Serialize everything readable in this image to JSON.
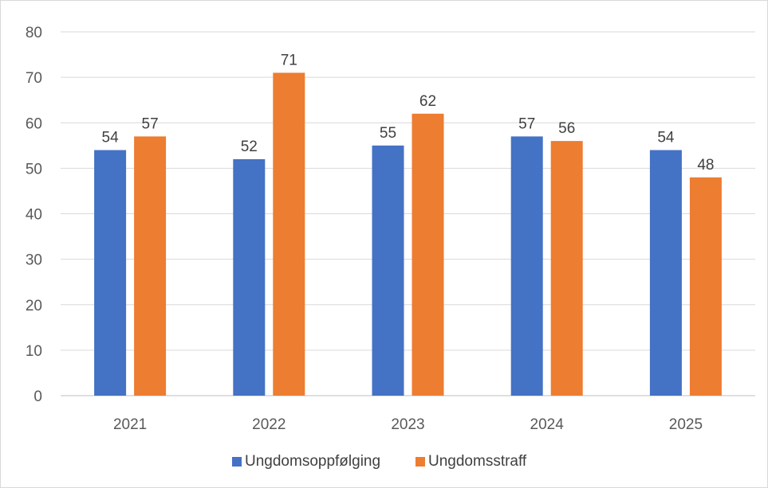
{
  "chart_data": {
    "type": "bar",
    "title": "",
    "xlabel": "",
    "ylabel": "",
    "categories": [
      "2021",
      "2022",
      "2023",
      "2024",
      "2025"
    ],
    "series": [
      {
        "name": "Ungdomsoppfølging",
        "color": "#4472C4",
        "values": [
          54,
          52,
          55,
          57,
          54
        ]
      },
      {
        "name": "Ungdomsstraff",
        "color": "#ED7D31",
        "values": [
          57,
          71,
          62,
          56,
          48
        ]
      }
    ],
    "ylim": [
      0,
      80
    ],
    "yticks": [
      0,
      10,
      20,
      30,
      40,
      50,
      60,
      70,
      80
    ],
    "grid": true,
    "legend_position": "bottom",
    "data_labels": true
  }
}
